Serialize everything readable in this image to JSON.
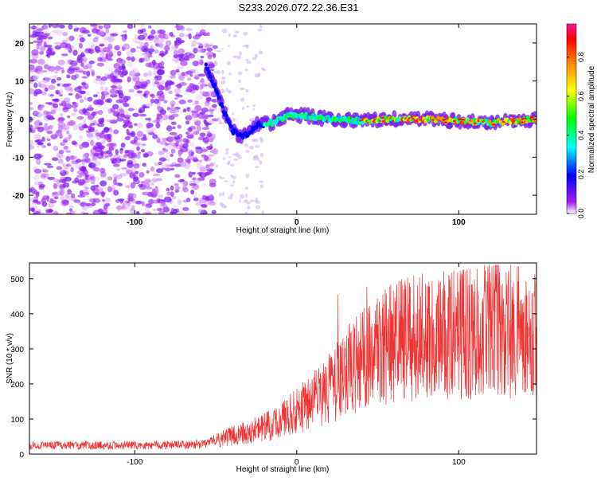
{
  "title": "S233.2026.072.22.36.E31",
  "chart_data": [
    {
      "type": "heatmap",
      "xlabel": "Height of straight line (km)",
      "ylabel": "Frequency (Hz)",
      "xlim": [
        -165,
        148
      ],
      "ylim": [
        -25,
        25
      ],
      "xticks": [
        -100,
        0,
        100
      ],
      "yticks": [
        -20,
        -10,
        0,
        10,
        20
      ],
      "colorbar": {
        "label": "Normalized spectral amplitude",
        "range": [
          0,
          0.97
        ],
        "ticks": [
          0.0,
          0.2,
          0.4,
          0.6,
          0.8
        ],
        "colormap": [
          "#ffffff",
          "#a020f0",
          "#0000ff",
          "#00ffff",
          "#00ff00",
          "#ffff00",
          "#ff8000",
          "#ff0000",
          "#ff1493"
        ]
      },
      "ridge": [
        {
          "x": -55,
          "f": 13
        },
        {
          "x": -50,
          "f": 8
        },
        {
          "x": -45,
          "f": 2
        },
        {
          "x": -40,
          "f": -3
        },
        {
          "x": -35,
          "f": -4.5
        },
        {
          "x": -30,
          "f": -4
        },
        {
          "x": -25,
          "f": -1.5
        },
        {
          "x": -15,
          "f": -1
        },
        {
          "x": -5,
          "f": 1
        },
        {
          "x": 5,
          "f": 1
        },
        {
          "x": 20,
          "f": 0
        },
        {
          "x": 40,
          "f": -0.5
        },
        {
          "x": 60,
          "f": 0
        },
        {
          "x": 80,
          "f": 0
        },
        {
          "x": 100,
          "f": -0.5
        },
        {
          "x": 120,
          "f": -1
        },
        {
          "x": 148,
          "f": 0
        }
      ]
    },
    {
      "type": "line",
      "xlabel": "Height of straight line (km)",
      "ylabel": "SNR (10 * v/v)",
      "xlim": [
        -165,
        148
      ],
      "ylim": [
        0,
        545
      ],
      "xticks": [
        -100,
        0,
        100
      ],
      "yticks": [
        0,
        100,
        200,
        300,
        400,
        500
      ],
      "color": "#ee3333",
      "trend": [
        {
          "x": -165,
          "y": 25
        },
        {
          "x": -100,
          "y": 25
        },
        {
          "x": -60,
          "y": 27
        },
        {
          "x": -45,
          "y": 45
        },
        {
          "x": -20,
          "y": 75
        },
        {
          "x": 0,
          "y": 120
        },
        {
          "x": 20,
          "y": 190
        },
        {
          "x": 40,
          "y": 270
        },
        {
          "x": 60,
          "y": 320
        },
        {
          "x": 80,
          "y": 335
        },
        {
          "x": 100,
          "y": 340
        },
        {
          "x": 120,
          "y": 355
        },
        {
          "x": 148,
          "y": 345
        }
      ]
    }
  ]
}
